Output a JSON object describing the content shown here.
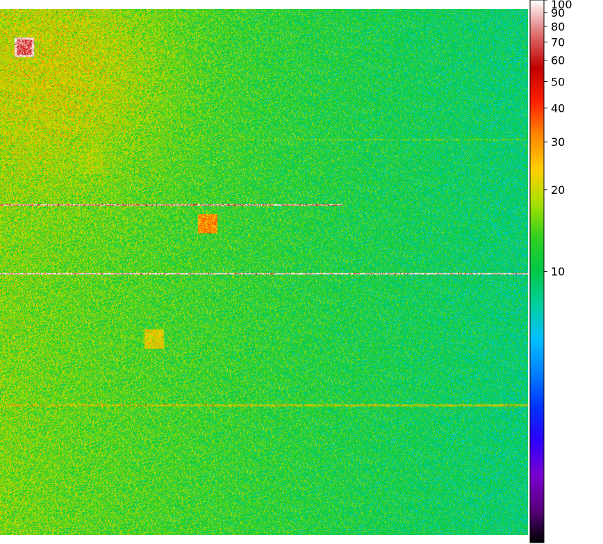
{
  "chart_data": {
    "type": "heatmap",
    "title": "",
    "xlabel": "",
    "ylabel": "",
    "colorbar": {
      "scale": "log",
      "range": [
        1,
        100
      ],
      "ticks": [
        {
          "value": 100,
          "label": "100"
        },
        {
          "value": 90,
          "label": "90"
        },
        {
          "value": 80,
          "label": "80"
        },
        {
          "value": 70,
          "label": "70"
        },
        {
          "value": 60,
          "label": "60"
        },
        {
          "value": 50,
          "label": "50"
        },
        {
          "value": 40,
          "label": "40"
        },
        {
          "value": 30,
          "label": "30"
        },
        {
          "value": 20,
          "label": "20"
        },
        {
          "value": 10,
          "label": "10"
        }
      ],
      "colormap": [
        "#000000",
        "#5a0080",
        "#7a00d0",
        "#2d00ff",
        "#0033ff",
        "#0080ff",
        "#00c0ff",
        "#00d0a0",
        "#00c848",
        "#30d020",
        "#a8e000",
        "#ffd000",
        "#ff8800",
        "#ff2000",
        "#c00000",
        "#e07070",
        "#ffffff"
      ]
    },
    "background_level": {
      "left": 16,
      "right": 9
    },
    "features": [
      {
        "type": "hot-square",
        "level": 70,
        "x": 0.045,
        "y": 0.072
      },
      {
        "type": "square",
        "level": 30,
        "x": 0.393,
        "y": 0.408
      },
      {
        "type": "square",
        "level": 22,
        "x": 0.292,
        "y": 0.627
      },
      {
        "type": "faint-square",
        "level": 18,
        "x": 0.17,
        "y": 0.29
      },
      {
        "type": "row",
        "level": 80,
        "y": 0.372,
        "x0": 0.0,
        "x1": 0.648
      },
      {
        "type": "row",
        "level": 100,
        "y": 0.503,
        "x0": 0.0,
        "x1": 1.0
      },
      {
        "type": "row",
        "level": 20,
        "y": 0.753,
        "x0": 0.0,
        "x1": 1.0
      },
      {
        "type": "row",
        "level": 14,
        "y": 0.248,
        "x0": 0.33,
        "x1": 1.0
      }
    ]
  }
}
